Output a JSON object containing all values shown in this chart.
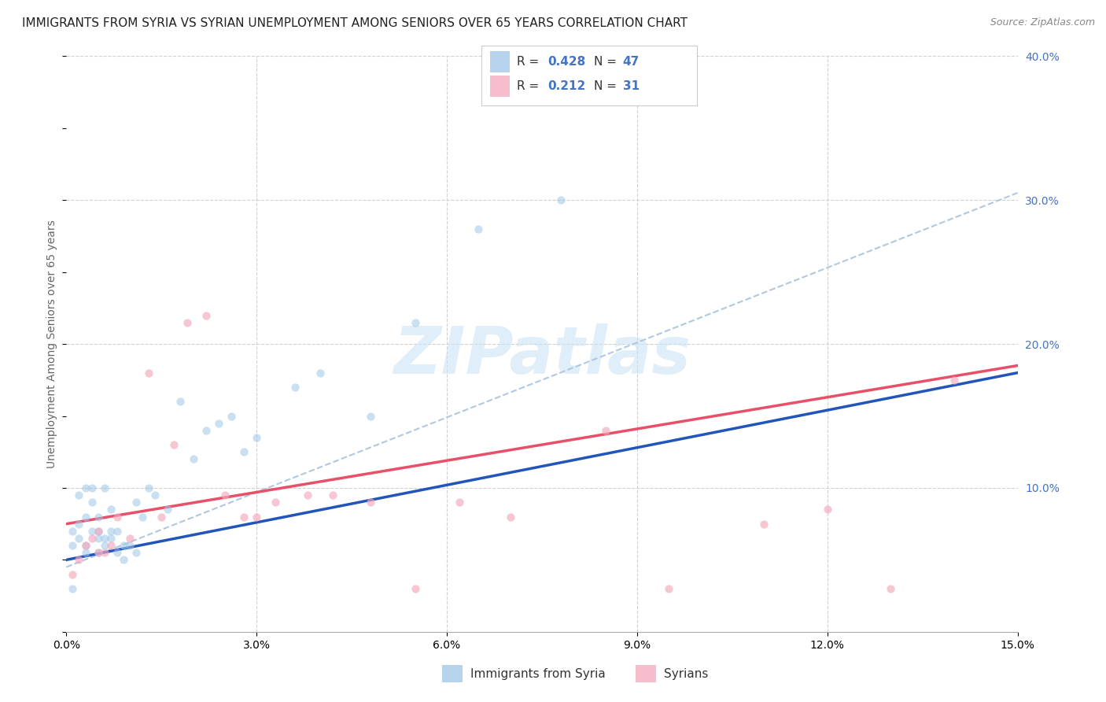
{
  "title": "IMMIGRANTS FROM SYRIA VS SYRIAN UNEMPLOYMENT AMONG SENIORS OVER 65 YEARS CORRELATION CHART",
  "source": "Source: ZipAtlas.com",
  "ylabel": "Unemployment Among Seniors over 65 years",
  "xlim": [
    0.0,
    0.15
  ],
  "ylim": [
    0.0,
    0.4
  ],
  "xticks": [
    0.0,
    0.03,
    0.06,
    0.09,
    0.12,
    0.15
  ],
  "xtick_labels": [
    "0.0%",
    "3.0%",
    "6.0%",
    "9.0%",
    "12.0%",
    "15.0%"
  ],
  "yticks_right": [
    0.0,
    0.1,
    0.2,
    0.3,
    0.4
  ],
  "ytick_labels_right": [
    "",
    "10.0%",
    "20.0%",
    "30.0%",
    "40.0%"
  ],
  "color_blue": "#9ec5e8",
  "color_pink": "#f4a8bc",
  "color_blue_text": "#4472c4",
  "watermark": "ZIPatlas",
  "blue_scatter_x": [
    0.001,
    0.001,
    0.001,
    0.002,
    0.002,
    0.002,
    0.003,
    0.003,
    0.003,
    0.003,
    0.004,
    0.004,
    0.004,
    0.005,
    0.005,
    0.005,
    0.005,
    0.006,
    0.006,
    0.006,
    0.007,
    0.007,
    0.007,
    0.008,
    0.008,
    0.009,
    0.009,
    0.01,
    0.011,
    0.011,
    0.012,
    0.013,
    0.014,
    0.016,
    0.018,
    0.02,
    0.022,
    0.024,
    0.026,
    0.028,
    0.03,
    0.036,
    0.04,
    0.048,
    0.055,
    0.065,
    0.078
  ],
  "blue_scatter_y": [
    0.03,
    0.06,
    0.07,
    0.065,
    0.075,
    0.095,
    0.055,
    0.06,
    0.08,
    0.1,
    0.07,
    0.09,
    0.1,
    0.055,
    0.065,
    0.07,
    0.08,
    0.06,
    0.065,
    0.1,
    0.065,
    0.07,
    0.085,
    0.055,
    0.07,
    0.05,
    0.06,
    0.06,
    0.055,
    0.09,
    0.08,
    0.1,
    0.095,
    0.085,
    0.16,
    0.12,
    0.14,
    0.145,
    0.15,
    0.125,
    0.135,
    0.17,
    0.18,
    0.15,
    0.215,
    0.28,
    0.3
  ],
  "pink_scatter_x": [
    0.001,
    0.002,
    0.003,
    0.004,
    0.005,
    0.005,
    0.006,
    0.007,
    0.008,
    0.01,
    0.013,
    0.015,
    0.017,
    0.019,
    0.022,
    0.025,
    0.028,
    0.03,
    0.033,
    0.038,
    0.042,
    0.048,
    0.055,
    0.062,
    0.07,
    0.085,
    0.095,
    0.11,
    0.12,
    0.13,
    0.14
  ],
  "pink_scatter_y": [
    0.04,
    0.05,
    0.06,
    0.065,
    0.055,
    0.07,
    0.055,
    0.06,
    0.08,
    0.065,
    0.18,
    0.08,
    0.13,
    0.215,
    0.22,
    0.095,
    0.08,
    0.08,
    0.09,
    0.095,
    0.095,
    0.09,
    0.03,
    0.09,
    0.08,
    0.14,
    0.03,
    0.075,
    0.085,
    0.03,
    0.175
  ],
  "blue_line_x": [
    0.0,
    0.15
  ],
  "blue_line_y": [
    0.05,
    0.18
  ],
  "pink_line_x": [
    0.0,
    0.15
  ],
  "pink_line_y": [
    0.075,
    0.185
  ],
  "dashed_line_x": [
    0.0,
    0.15
  ],
  "dashed_line_y": [
    0.045,
    0.305
  ],
  "title_fontsize": 11,
  "source_fontsize": 9,
  "axis_fontsize": 10,
  "legend_fontsize": 11,
  "watermark_fontsize": 60,
  "background_color": "#ffffff",
  "grid_color": "#d0d0d0"
}
